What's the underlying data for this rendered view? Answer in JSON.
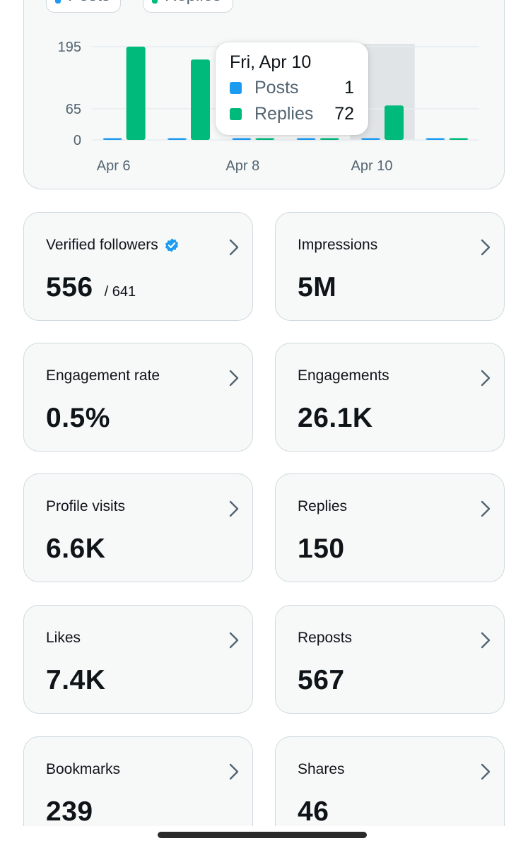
{
  "legend": {
    "posts_label": "Posts",
    "replies_label": "Replies"
  },
  "chart_data": {
    "type": "bar",
    "categories": [
      "Apr 6",
      "Apr 7",
      "Apr 8",
      "Apr 9",
      "Apr 10",
      "Apr 11"
    ],
    "x_tick_labels": [
      "Apr 6",
      "Apr 8",
      "Apr 10"
    ],
    "y_ticks": [
      0,
      65,
      195
    ],
    "ylim": [
      0,
      195
    ],
    "series": [
      {
        "name": "Posts",
        "color": "#1d9bf0",
        "values": [
          1,
          1,
          1,
          1,
          1,
          1
        ]
      },
      {
        "name": "Replies",
        "color": "#00ba7c",
        "values": [
          195,
          168,
          1,
          1,
          72,
          1
        ]
      }
    ],
    "highlighted_category": "Apr 10",
    "grid": true
  },
  "tooltip": {
    "date": "Fri, Apr 10",
    "rows": [
      {
        "label": "Posts",
        "value": "1",
        "color": "#1d9bf0"
      },
      {
        "label": "Replies",
        "value": "72",
        "color": "#00ba7c"
      }
    ]
  },
  "stats": [
    {
      "label": "Verified followers",
      "value": "556",
      "sub": "/ 641",
      "verified": true
    },
    {
      "label": "Impressions",
      "value": "5M"
    },
    {
      "label": "Engagement rate",
      "value": "0.5%"
    },
    {
      "label": "Engagements",
      "value": "26.1K"
    },
    {
      "label": "Profile visits",
      "value": "6.6K"
    },
    {
      "label": "Replies",
      "value": "150"
    },
    {
      "label": "Likes",
      "value": "7.4K"
    },
    {
      "label": "Reposts",
      "value": "567"
    },
    {
      "label": "Bookmarks",
      "value": "239"
    },
    {
      "label": "Shares",
      "value": "46"
    }
  ],
  "colors": {
    "posts": "#1d9bf0",
    "replies": "#00ba7c",
    "verified_badge": "#1d9bf0"
  }
}
